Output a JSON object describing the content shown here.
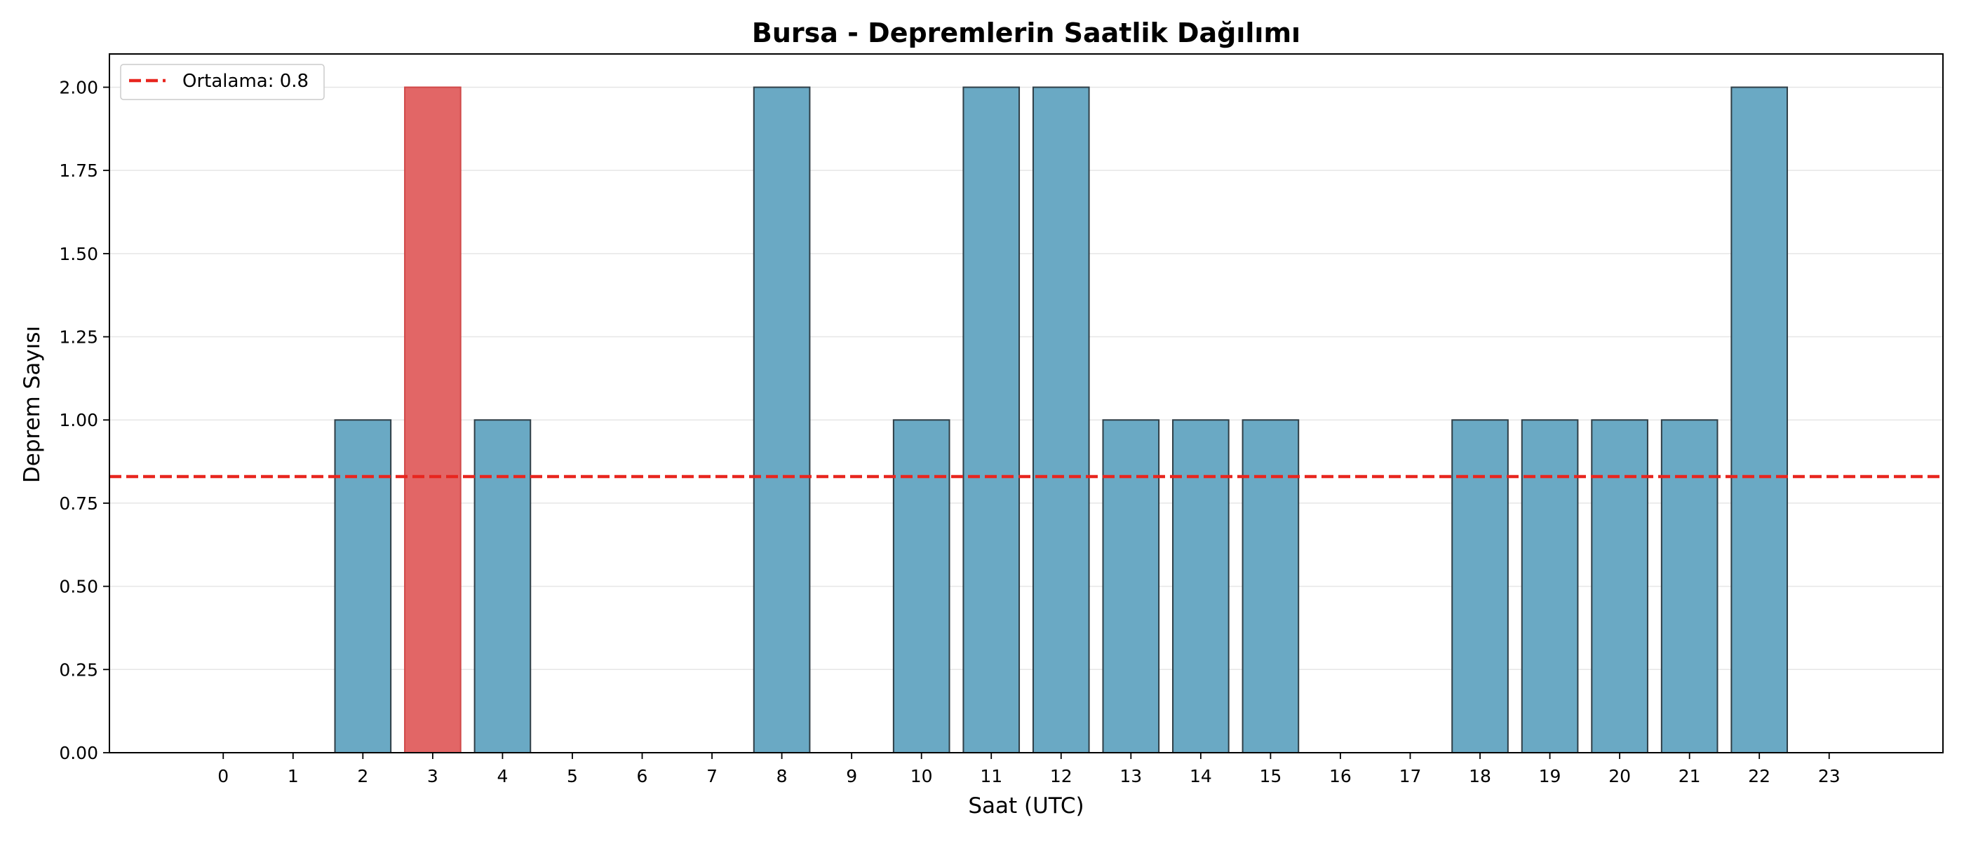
{
  "chart_data": {
    "type": "bar",
    "title": "Bursa - Depremlerin Saatlik Dağılımı",
    "xlabel": "Saat (UTC)",
    "ylabel": "Deprem Sayısı",
    "categories": [
      "0",
      "1",
      "2",
      "3",
      "4",
      "5",
      "6",
      "7",
      "8",
      "9",
      "10",
      "11",
      "12",
      "13",
      "14",
      "15",
      "16",
      "17",
      "18",
      "19",
      "20",
      "21",
      "22",
      "23"
    ],
    "values": [
      0,
      0,
      1,
      2,
      1,
      0,
      0,
      0,
      2,
      0,
      1,
      2,
      2,
      1,
      1,
      1,
      0,
      0,
      1,
      1,
      1,
      1,
      2,
      0
    ],
    "highlight_index": 3,
    "ylim": [
      0,
      2.1
    ],
    "yticks": [
      0.0,
      0.25,
      0.5,
      0.75,
      1.0,
      1.25,
      1.5,
      1.75,
      2.0
    ],
    "ytick_labels": [
      "0.00",
      "0.25",
      "0.50",
      "0.75",
      "1.00",
      "1.25",
      "1.50",
      "1.75",
      "2.00"
    ],
    "mean_line": {
      "value": 0.83,
      "label": "Ortalama: 0.8"
    },
    "grid": "y",
    "legend_position": "top-left",
    "colors": {
      "bar": "#6aa9c4",
      "highlight_bar": "#e26666",
      "bar_edge": "#2f3e46",
      "mean_line": "#e8261f",
      "grid": "#e6e6e6"
    }
  }
}
